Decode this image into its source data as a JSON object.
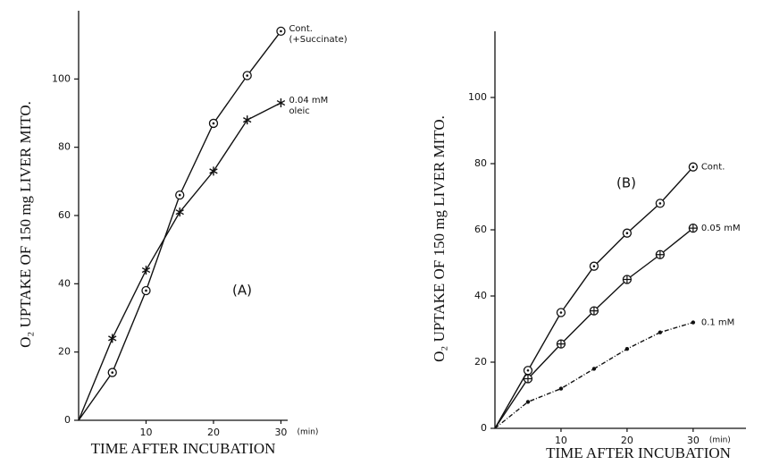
{
  "chart_data": [
    {
      "type": "line",
      "panel_label": "(A)",
      "x_label": "TIME AFTER INCUBATION",
      "x_unit": "(min)",
      "y_label": "O₂ UPTAKE OF 150 mg LIVER MITO.",
      "x": [
        0,
        5,
        10,
        15,
        20,
        25,
        30
      ],
      "xlim": [
        0,
        31
      ],
      "xticks": [
        10,
        20,
        30
      ],
      "ylim": [
        0,
        120
      ],
      "yticks": [
        0,
        20,
        40,
        60,
        80,
        100
      ],
      "series": [
        {
          "name": "Cont.",
          "note": "(+Succinate)",
          "color": "#111111",
          "marker": "circle-dot",
          "values": [
            0,
            14,
            38,
            66,
            87,
            101,
            114
          ]
        },
        {
          "name": "0.04 mM",
          "note": "oleic",
          "color": "#111111",
          "marker": "star",
          "values": [
            0,
            24,
            44,
            61,
            73,
            88,
            93
          ]
        }
      ]
    },
    {
      "type": "line",
      "panel_label": "(B)",
      "x_label": "TIME AFTER INCUBATION",
      "x_unit": "(min)",
      "y_label": "O₂ UPTAKE OF 150 mg LIVER MITO.",
      "x": [
        0,
        5,
        10,
        15,
        20,
        25,
        30
      ],
      "xlim": [
        0,
        38
      ],
      "xticks": [
        10,
        20,
        30
      ],
      "ylim": [
        0,
        120
      ],
      "yticks": [
        0,
        20,
        40,
        60,
        80,
        100
      ],
      "series": [
        {
          "name": "Cont.",
          "color": "#111111",
          "marker": "circle-dot",
          "values": [
            0,
            17.5,
            35,
            49,
            59,
            68,
            79
          ]
        },
        {
          "name": "0.05 mM",
          "color": "#111111",
          "marker": "circle-plus",
          "values": [
            0,
            15,
            25.5,
            35.5,
            45,
            52.5,
            60.5
          ]
        },
        {
          "name": "0.1 mM",
          "color": "#111111",
          "marker": "dot",
          "values": [
            0,
            8,
            12,
            18,
            24,
            29,
            32
          ]
        }
      ]
    }
  ]
}
